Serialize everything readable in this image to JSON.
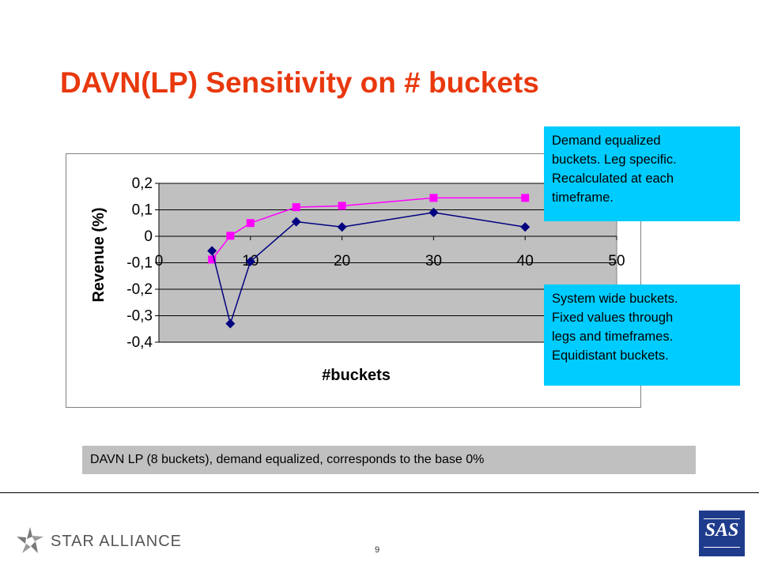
{
  "title": "DAVN(LP) Sensitivity on # buckets",
  "callouts": {
    "top_lines": [
      "Demand equalized",
      "buckets. Leg specific.",
      "Recalculated at each",
      "timeframe."
    ],
    "bottom_lines": [
      "System wide buckets.",
      "Fixed values through",
      "legs and timeframes.",
      "Equidistant buckets."
    ]
  },
  "footnote": "DAVN LP (8 buckets), demand equalized, corresponds to the base 0%",
  "footer": {
    "alliance_text": "STAR ALLIANCE",
    "page_number": "9",
    "brand_text": "SAS"
  },
  "chart_data": {
    "type": "line",
    "title": "",
    "xlabel": "#buckets",
    "ylabel": "Revenue (%)",
    "xlim": [
      0,
      50
    ],
    "ylim": [
      -0.4,
      0.2
    ],
    "x_ticks": [
      0,
      10,
      20,
      30,
      40,
      50
    ],
    "y_ticks": [
      0.2,
      0.1,
      0,
      -0.1,
      -0.2,
      -0.3,
      -0.4
    ],
    "x_tick_labels": [
      "0",
      "10",
      "20",
      "30",
      "40",
      "50"
    ],
    "y_tick_labels": [
      "0,2",
      "0,1",
      "0",
      "-0,1",
      "-0,2",
      "-0,3",
      "-0,4"
    ],
    "grid": "horizontal",
    "plot_background": "#c0c0c0",
    "series": [
      {
        "color": "#ff00ff",
        "marker": "square",
        "points": [
          [
            5.8,
            -0.088
          ],
          [
            7.8,
            0.002
          ],
          [
            10,
            0.05
          ],
          [
            15,
            0.11
          ],
          [
            20,
            0.115
          ],
          [
            30,
            0.145
          ],
          [
            40,
            0.145
          ]
        ]
      },
      {
        "color": "#000080",
        "marker": "diamond",
        "points": [
          [
            5.8,
            -0.055
          ],
          [
            7.8,
            -0.33
          ],
          [
            10,
            -0.095
          ],
          [
            15,
            0.055
          ],
          [
            20,
            0.035
          ],
          [
            30,
            0.09
          ],
          [
            40,
            0.035
          ]
        ]
      }
    ]
  }
}
